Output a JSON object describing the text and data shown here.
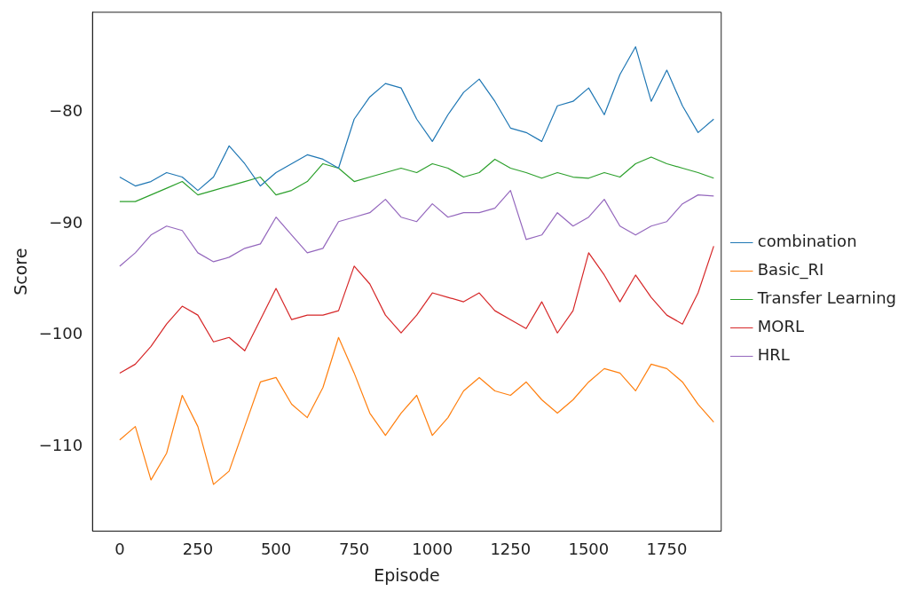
{
  "chart_data": {
    "type": "line",
    "xlabel": "Episode",
    "ylabel": "Score",
    "x": [
      0,
      50,
      100,
      150,
      200,
      250,
      300,
      350,
      400,
      450,
      500,
      550,
      600,
      650,
      700,
      750,
      800,
      850,
      900,
      950,
      1000,
      1050,
      1100,
      1150,
      1200,
      1250,
      1300,
      1350,
      1400,
      1450,
      1500,
      1550,
      1600,
      1650,
      1700,
      1750,
      1800,
      1850,
      1900
    ],
    "series": [
      {
        "name": "combination",
        "color": "#1f77b4",
        "values": [
          -85.8,
          -86.6,
          -86.2,
          -85.4,
          -85.8,
          -87.0,
          -85.8,
          -83.0,
          -84.6,
          -86.6,
          -85.4,
          -84.6,
          -83.8,
          -84.2,
          -85.0,
          -80.6,
          -78.6,
          -77.4,
          -77.8,
          -80.6,
          -82.6,
          -80.2,
          -78.2,
          -77.0,
          -79.0,
          -81.4,
          -81.8,
          -82.6,
          -79.4,
          -79.0,
          -77.8,
          -80.2,
          -76.6,
          -74.1,
          -79.0,
          -76.2,
          -79.4,
          -81.8,
          -80.6
        ]
      },
      {
        "name": "Basic_RI",
        "color": "#ff7f0e",
        "values": [
          -109.4,
          -108.2,
          -113.0,
          -110.6,
          -105.4,
          -108.2,
          -113.4,
          -112.2,
          -108.2,
          -104.2,
          -103.8,
          -106.2,
          -107.4,
          -104.7,
          -100.2,
          -103.4,
          -107.0,
          -109.0,
          -107.0,
          -105.4,
          -109.0,
          -107.4,
          -105.0,
          -103.8,
          -105.0,
          -105.4,
          -104.2,
          -105.8,
          -107.0,
          -105.8,
          -104.2,
          -103.0,
          -103.4,
          -105.0,
          -102.6,
          -103.0,
          -104.2,
          -106.2,
          -107.8
        ]
      },
      {
        "name": "Transfer Learning",
        "color": "#2ca02c",
        "values": [
          -88.0,
          -88.0,
          -87.4,
          -86.8,
          -86.2,
          -87.4,
          -87.0,
          -86.6,
          -86.2,
          -85.8,
          -87.4,
          -87.0,
          -86.2,
          -84.6,
          -85.0,
          -86.2,
          -85.8,
          -85.4,
          -85.0,
          -85.4,
          -84.6,
          -85.0,
          -85.8,
          -85.4,
          -84.2,
          -85.0,
          -85.4,
          -85.9,
          -85.4,
          -85.8,
          -85.9,
          -85.4,
          -85.8,
          -84.6,
          -84.0,
          -84.6,
          -85.0,
          -85.4,
          -85.9
        ]
      },
      {
        "name": "MORL",
        "color": "#d62728",
        "values": [
          -103.4,
          -102.6,
          -101.0,
          -99.0,
          -97.4,
          -98.2,
          -100.6,
          -100.2,
          -101.4,
          -98.6,
          -95.8,
          -98.6,
          -98.2,
          -98.2,
          -97.8,
          -93.8,
          -95.4,
          -98.2,
          -99.8,
          -98.2,
          -96.2,
          -96.6,
          -97.0,
          -96.2,
          -97.8,
          -98.6,
          -99.4,
          -97.0,
          -99.8,
          -97.8,
          -92.6,
          -94.6,
          -97.0,
          -94.6,
          -96.6,
          -98.2,
          -99.0,
          -96.2,
          -92.0
        ]
      },
      {
        "name": "HRL",
        "color": "#9467bd",
        "values": [
          -93.8,
          -92.6,
          -91.0,
          -90.2,
          -90.6,
          -92.6,
          -93.4,
          -93.0,
          -92.2,
          -91.8,
          -89.4,
          -91.0,
          -92.6,
          -92.2,
          -89.8,
          -89.4,
          -89.0,
          -87.8,
          -89.4,
          -89.8,
          -88.2,
          -89.4,
          -89.0,
          -89.0,
          -88.6,
          -87.0,
          -91.4,
          -91.0,
          -89.0,
          -90.2,
          -89.4,
          -87.8,
          -90.2,
          -91.0,
          -90.2,
          -89.8,
          -88.2,
          -87.4,
          -87.5
        ]
      }
    ],
    "xlim": [
      -87,
      1924
    ],
    "xticks": [
      0,
      250,
      500,
      750,
      1000,
      1250,
      1500,
      1750
    ],
    "ylim": [
      -117.6,
      -71
    ],
    "yticks": [
      -110,
      -100,
      -90,
      -80
    ],
    "grid": false,
    "legend": "right",
    "marker": "none",
    "line_style": "solid"
  }
}
